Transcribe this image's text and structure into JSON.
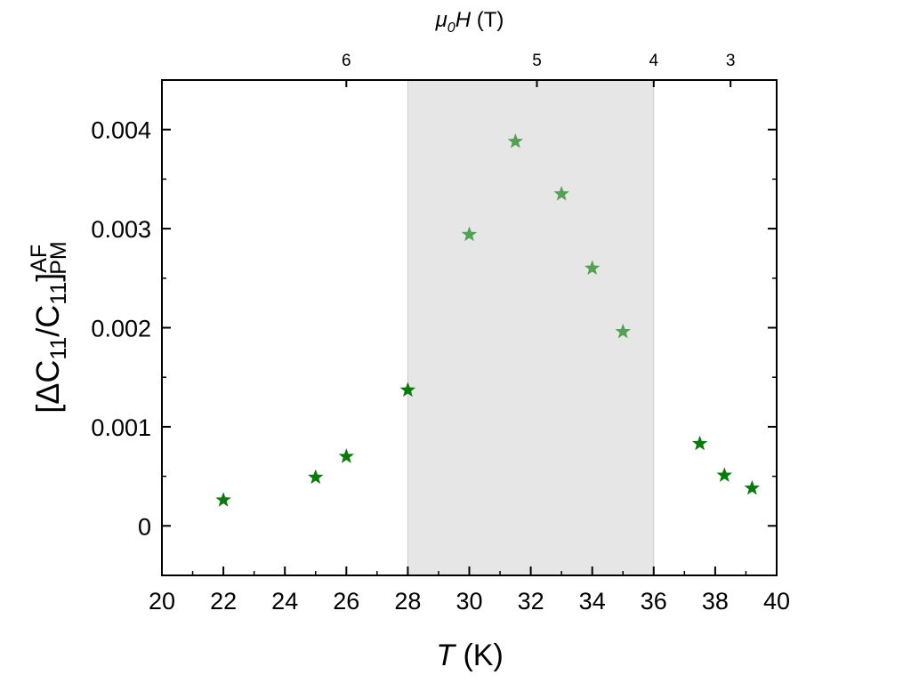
{
  "chart_data": {
    "type": "scatter",
    "xlabel": {
      "symbol": "T",
      "unit": "(K)"
    },
    "ylabel": {
      "bracket_open": "[",
      "delta": "Δ",
      "num_base": "C",
      "num_sub": "11",
      "slash": "/",
      "den_base": "C",
      "den_sub": "11",
      "bracket_close": "]",
      "sup": "AF",
      "sub": "PM"
    },
    "top_axis_label": {
      "mu": "μ",
      "mu_sub": "0",
      "symbol": "H",
      "unit": "(T)"
    },
    "xlim": [
      20,
      40
    ],
    "ylim": [
      -0.0005,
      0.0045
    ],
    "x_ticks": [
      20,
      22,
      24,
      26,
      28,
      30,
      32,
      34,
      36,
      38,
      40
    ],
    "x_tick_labels": [
      "20",
      "22",
      "24",
      "26",
      "28",
      "30",
      "32",
      "34",
      "36",
      "38",
      "40"
    ],
    "y_ticks": [
      0,
      0.001,
      0.002,
      0.003,
      0.004
    ],
    "y_tick_labels": [
      "0",
      "0.001",
      "0.002",
      "0.003",
      "0.004"
    ],
    "top_ticks": [
      {
        "t": 26.0,
        "label": "6"
      },
      {
        "t": 32.2,
        "label": "5"
      },
      {
        "t": 36.0,
        "label": "4"
      },
      {
        "t": 38.5,
        "label": "3"
      }
    ],
    "shaded_region": {
      "x": [
        28,
        36
      ],
      "color": "#e6e6e6",
      "edge_color": "#cccccc"
    },
    "colors": {
      "dark": "#0a7a0a",
      "light": "#55a055"
    },
    "series": [
      {
        "marker": "star",
        "points": [
          {
            "x": 22.0,
            "y": 0.00026,
            "shade": "dark"
          },
          {
            "x": 25.0,
            "y": 0.00049,
            "shade": "dark"
          },
          {
            "x": 26.0,
            "y": 0.0007,
            "shade": "dark"
          },
          {
            "x": 28.0,
            "y": 0.00137,
            "shade": "dark"
          },
          {
            "x": 30.0,
            "y": 0.00294,
            "shade": "light"
          },
          {
            "x": 31.5,
            "y": 0.00388,
            "shade": "light"
          },
          {
            "x": 33.0,
            "y": 0.00335,
            "shade": "light"
          },
          {
            "x": 34.0,
            "y": 0.0026,
            "shade": "light"
          },
          {
            "x": 35.0,
            "y": 0.00196,
            "shade": "light"
          },
          {
            "x": 37.5,
            "y": 0.00083,
            "shade": "dark"
          },
          {
            "x": 38.3,
            "y": 0.00051,
            "shade": "dark"
          },
          {
            "x": 39.2,
            "y": 0.00038,
            "shade": "dark"
          }
        ]
      }
    ],
    "grid": false,
    "legend": "none"
  }
}
